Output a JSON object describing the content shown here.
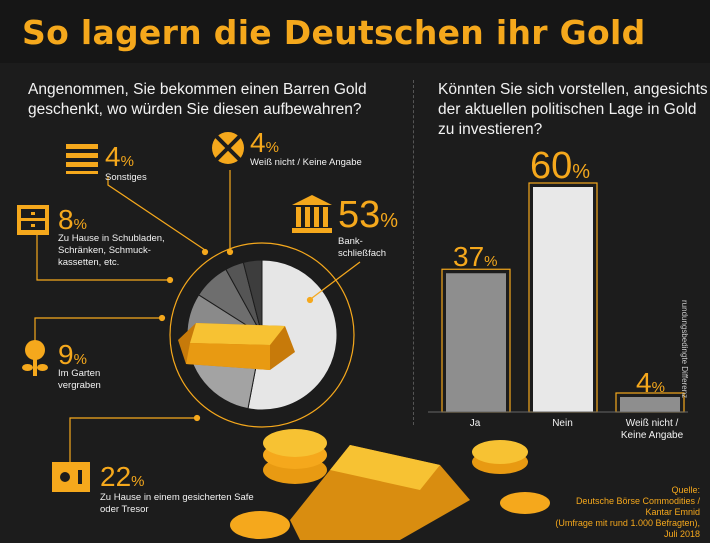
{
  "title": "So lagern die Deutschen ihr Gold",
  "q1": "Angenommen, Sie bekommen einen Barren Gold geschenkt, wo würden Sie diesen aufbewahren?",
  "q2": "Könnten Sie sich vorstellen, angesichts der aktuellen politischen Lage in Gold zu investieren?",
  "pct_unit": "%",
  "items": [
    {
      "value": "4",
      "label": "Sonstiges"
    },
    {
      "value": "4",
      "label": "Weiß nicht / Keine Angabe"
    },
    {
      "value": "8",
      "label": "Zu Hause in Schubladen, Schränken, Schmuck­kassetten, etc."
    },
    {
      "value": "53",
      "label": "Bank-schließfach"
    },
    {
      "value": "9",
      "label": "Im Garten vergraben"
    },
    {
      "value": "22",
      "label": "Zu Hause in einem gesicherten Safe oder Tresor"
    }
  ],
  "colors": {
    "accent": "#f5a81c",
    "background": "#1c1c1c"
  },
  "chart_data": [
    {
      "type": "pie",
      "categories": [
        "Bank-schließfach",
        "Zu Hause in einem gesicherten Safe oder Tresor",
        "Im Garten vergraben",
        "Zu Hause in Schubladen, Schränken, Schmuckkassetten, etc.",
        "Sonstiges",
        "Weiß nicht / Keine Angabe"
      ],
      "values": [
        53,
        22,
        9,
        8,
        4,
        4
      ],
      "colors": [
        "#e6e6e6",
        "#a3a3a3",
        "#8a8a8a",
        "#6e6e6e",
        "#555555",
        "#3d3d3d"
      ]
    },
    {
      "type": "bar",
      "categories": [
        "Ja",
        "Nein",
        "Weiß nicht / Keine Angabe"
      ],
      "values": [
        37,
        60,
        4
      ],
      "ylim": [
        0,
        60
      ]
    }
  ],
  "source": [
    "Quelle:",
    "Deutsche Börse Commodities /",
    "Kantar Emnid",
    "(Umfrage mit rund 1.000 Befragten),",
    "Juli 2018"
  ],
  "side_note": "rundungsbedingte Differenz"
}
